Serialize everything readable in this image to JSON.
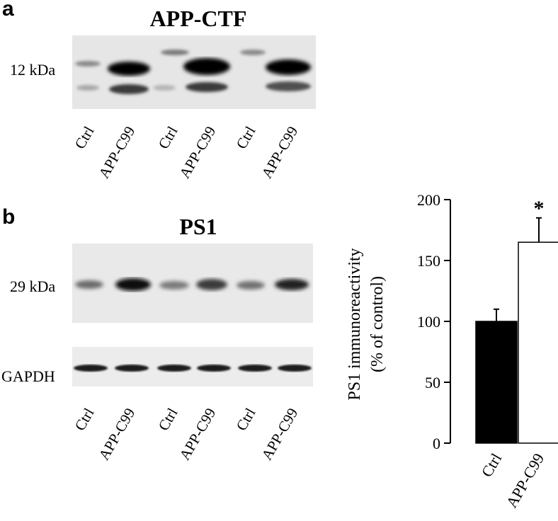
{
  "panel_a": {
    "letter": "a",
    "title": "APP-CTF",
    "band_label": "12 kDa",
    "lanes": [
      "Ctrl",
      "APP-C99",
      "Ctrl",
      "APP-C99",
      "Ctrl",
      "APP-C99"
    ]
  },
  "panel_b": {
    "letter": "b",
    "title": "PS1",
    "band_label": "29 kDa",
    "loading_label": "GAPDH",
    "lanes": [
      "Ctrl",
      "APP-C99",
      "Ctrl",
      "APP-C99",
      "Ctrl",
      "APP-C99"
    ]
  },
  "chart_data": {
    "type": "bar",
    "categories": [
      "Ctrl",
      "APP-C99"
    ],
    "values": [
      100,
      165
    ],
    "errors": [
      10,
      20
    ],
    "bar_colors": [
      "#000000",
      "#ffffff"
    ],
    "significance": [
      "",
      "*"
    ],
    "ylabel_line1": "PS1 immunoreactivity",
    "ylabel_line2": "(% of control)",
    "ylim": [
      0,
      200
    ],
    "yticks": [
      0,
      50,
      100,
      150,
      200
    ]
  }
}
